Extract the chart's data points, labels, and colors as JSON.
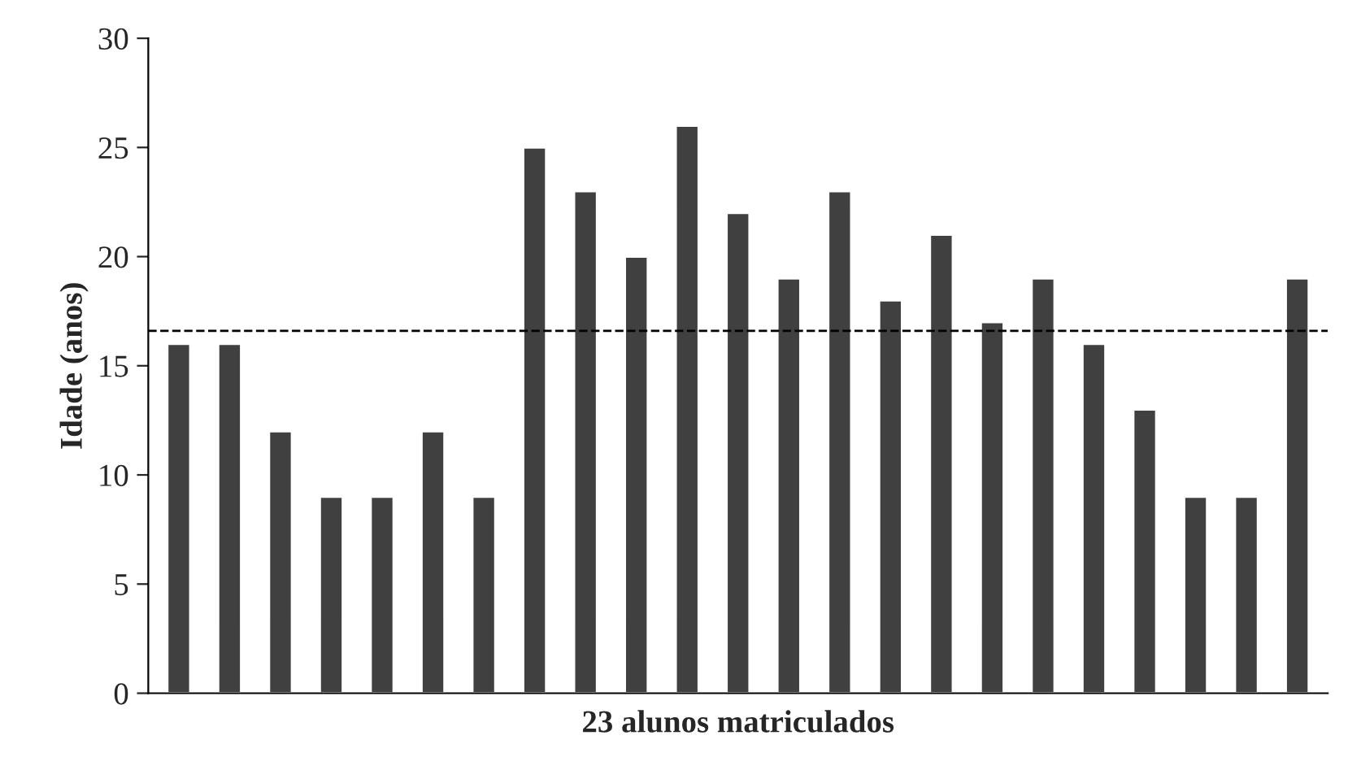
{
  "chart_data": {
    "type": "bar",
    "xlabel": "23 alunos matriculados",
    "ylabel": "Idade (anos)",
    "categories": [
      null,
      null,
      null,
      null,
      null,
      null,
      null,
      null,
      null,
      null,
      null,
      null,
      null,
      null,
      null,
      null,
      null,
      null,
      null,
      null,
      null,
      null,
      null
    ],
    "values": [
      16,
      16,
      12,
      9,
      9,
      12,
      9,
      25,
      23,
      20,
      26,
      22,
      19,
      23,
      18,
      21,
      17,
      19,
      16,
      13,
      9,
      9,
      19
    ],
    "color": "#404040",
    "ylim": [
      0,
      30
    ],
    "yticks": [
      0,
      5,
      10,
      15,
      20,
      25,
      30
    ],
    "ref_lines": [
      {
        "axis": "y",
        "value": 16.6,
        "color": "#000000",
        "line_style": "dashed"
      }
    ],
    "grid": false,
    "legend": false
  }
}
